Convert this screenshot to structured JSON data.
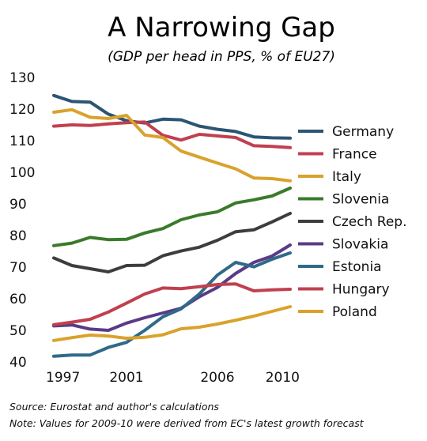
{
  "chart_data": {
    "type": "line",
    "title": "A Narrowing Gap",
    "subtitle": "(GDP per head in PPS, % of EU27)",
    "x": [
      1997,
      1998,
      1999,
      2000,
      2001,
      2002,
      2003,
      2004,
      2005,
      2006,
      2007,
      2008,
      2009,
      2010
    ],
    "x_ticks": [
      1997,
      2001,
      2006,
      2010
    ],
    "ylim": [
      40,
      130
    ],
    "y_ticks": [
      40,
      50,
      60,
      70,
      80,
      90,
      100,
      110,
      120,
      130
    ],
    "grid": false,
    "legend_position": "right",
    "series": [
      {
        "name": "Germany",
        "color": "#2b5573",
        "values": [
          124.3,
          122.4,
          122.2,
          118.4,
          116.3,
          115.6,
          116.8,
          116.6,
          114.6,
          113.6,
          112.9,
          111.2,
          110.9,
          110.8
        ]
      },
      {
        "name": "France",
        "color": "#c0404f",
        "values": [
          114.6,
          115.0,
          114.8,
          115.3,
          115.7,
          115.9,
          111.7,
          110.2,
          112.0,
          111.5,
          111.0,
          108.4,
          108.2,
          107.8
        ]
      },
      {
        "name": "Italy",
        "color": "#d9a22c",
        "values": [
          119.0,
          119.8,
          117.4,
          117.0,
          118.0,
          111.8,
          111.0,
          106.7,
          104.8,
          102.9,
          101.1,
          98.2,
          98.0,
          97.3
        ]
      },
      {
        "name": "Slovenia",
        "color": "#3a7a2b",
        "values": [
          76.8,
          77.6,
          79.4,
          78.7,
          78.8,
          80.8,
          82.2,
          85.0,
          86.5,
          87.5,
          90.3,
          91.3,
          92.5,
          95.0
        ]
      },
      {
        "name": "Czech Rep.",
        "color": "#3d3d3d",
        "values": [
          72.9,
          70.5,
          69.5,
          68.5,
          70.5,
          70.6,
          73.6,
          75.1,
          76.3,
          78.5,
          81.2,
          81.8,
          84.3,
          87.0
        ]
      },
      {
        "name": "Slovakia",
        "color": "#5a3b86",
        "values": [
          51.4,
          51.7,
          50.4,
          50.0,
          52.3,
          54.0,
          55.5,
          57.0,
          60.6,
          63.6,
          68.0,
          71.5,
          73.5,
          77.0
        ]
      },
      {
        "name": "Estonia",
        "color": "#2f6a88",
        "values": [
          41.8,
          42.2,
          42.2,
          44.6,
          46.2,
          50.0,
          54.3,
          56.8,
          61.5,
          67.5,
          71.5,
          70.1,
          72.5,
          74.5
        ]
      },
      {
        "name": "Hungary",
        "color": "#c0404f",
        "values": [
          51.8,
          52.6,
          53.5,
          55.8,
          58.6,
          61.5,
          63.4,
          63.2,
          63.8,
          64.5,
          64.7,
          62.5,
          62.8,
          63.0
        ]
      },
      {
        "name": "Poland",
        "color": "#d9a22c",
        "values": [
          46.8,
          47.7,
          48.5,
          48.2,
          47.5,
          47.8,
          48.6,
          50.5,
          51.0,
          52.0,
          53.2,
          54.5,
          56.0,
          57.5
        ]
      }
    ],
    "source": "Source: Eurostat and author's calculations",
    "note": "Note: Values for 2009-10 were derived from EC's latest growth forecast"
  }
}
